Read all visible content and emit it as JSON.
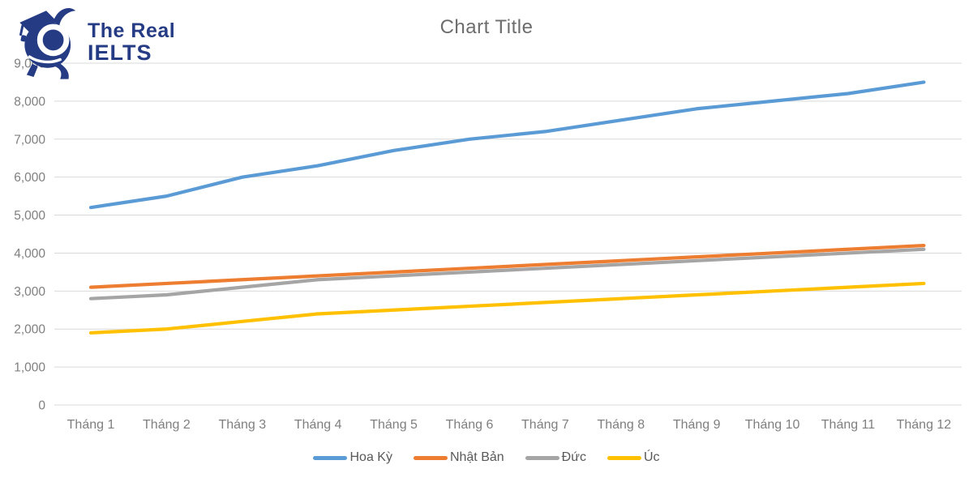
{
  "logo": {
    "line1": "The Real",
    "line2": "IELTS",
    "color": "#253c85"
  },
  "chart_data": {
    "type": "line",
    "title": "Chart Title",
    "categories": [
      "Tháng 1",
      "Tháng 2",
      "Tháng 3",
      "Tháng 4",
      "Tháng 5",
      "Tháng 6",
      "Tháng 7",
      "Tháng 8",
      "Tháng 9",
      "Tháng 10",
      "Tháng 11",
      "Tháng 12"
    ],
    "series": [
      {
        "name": "Hoa Kỳ",
        "color": "#5B9BD5",
        "values": [
          5200,
          5500,
          6000,
          6300,
          6700,
          7000,
          7200,
          7500,
          7800,
          8000,
          8200,
          8500
        ]
      },
      {
        "name": "Nhật Bản",
        "color": "#ED7D31",
        "values": [
          3100,
          3200,
          3300,
          3400,
          3500,
          3600,
          3700,
          3800,
          3900,
          4000,
          4100,
          4200
        ]
      },
      {
        "name": "Đức",
        "color": "#A5A5A5",
        "values": [
          2800,
          2900,
          3100,
          3300,
          3400,
          3500,
          3600,
          3700,
          3800,
          3900,
          4000,
          4100
        ]
      },
      {
        "name": "Úc",
        "color": "#FFC000",
        "values": [
          1900,
          2000,
          2200,
          2400,
          2500,
          2600,
          2700,
          2800,
          2900,
          3000,
          3100,
          3200
        ]
      }
    ],
    "xlabel": "",
    "ylabel": "",
    "ylim": [
      0,
      9000
    ],
    "ytick_step": 1000,
    "grid": true,
    "legend_position": "bottom",
    "gridline_color": "#d9d9d9",
    "tick_label_color": "#7f7f7f",
    "title_color": "#6d6d6d"
  }
}
